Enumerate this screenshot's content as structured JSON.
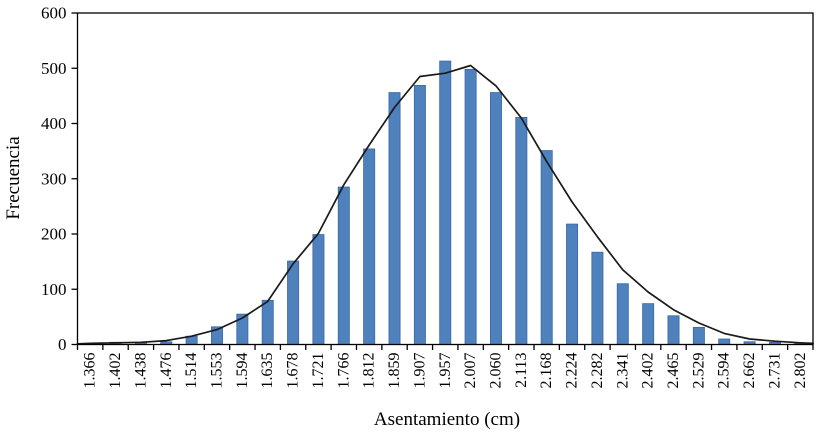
{
  "figure": {
    "background": "#FFFFFF",
    "border_color": "#000000"
  },
  "chart_data": {
    "type": "bar",
    "title": "",
    "xlabel": "Asentamiento (cm)",
    "ylabel": "Frecuencia",
    "categories": [
      "1.366",
      "1.402",
      "1.438",
      "1.476",
      "1.514",
      "1.553",
      "1.594",
      "1.635",
      "1.678",
      "1.721",
      "1.766",
      "1.812",
      "1.859",
      "1.907",
      "1.957",
      "2.007",
      "2.060",
      "2.113",
      "2.168",
      "2.224",
      "2.282",
      "2.341",
      "2.402",
      "2.465",
      "2.529",
      "2.594",
      "2.662",
      "2.731",
      "2.802"
    ],
    "series": [
      {
        "name": "frequency-bars",
        "type": "bar",
        "color": "#4F81BD",
        "edge_color": "#3A67A8",
        "values": [
          1,
          4,
          3,
          5,
          15,
          32,
          55,
          80,
          151,
          199,
          285,
          354,
          456,
          469,
          513,
          498,
          456,
          411,
          351,
          218,
          167,
          110,
          74,
          52,
          31,
          10,
          5,
          4,
          2
        ]
      },
      {
        "name": "fitted-distribution-curve",
        "type": "line",
        "color": "#1A1A1A",
        "values": [
          2,
          3,
          4,
          7,
          15,
          27,
          48,
          78,
          146,
          201,
          289,
          361,
          429,
          485,
          491,
          505,
          468,
          410,
          331,
          258,
          195,
          135,
          95,
          63,
          39,
          20,
          10,
          6,
          3
        ],
        "edge_start": 1,
        "edge_end": 2
      }
    ],
    "ylim": [
      0,
      600
    ],
    "yticks": [
      0,
      100,
      200,
      300,
      400,
      500,
      600
    ],
    "x_tick_label_rotation": -90,
    "grid": false,
    "legend": "none"
  }
}
